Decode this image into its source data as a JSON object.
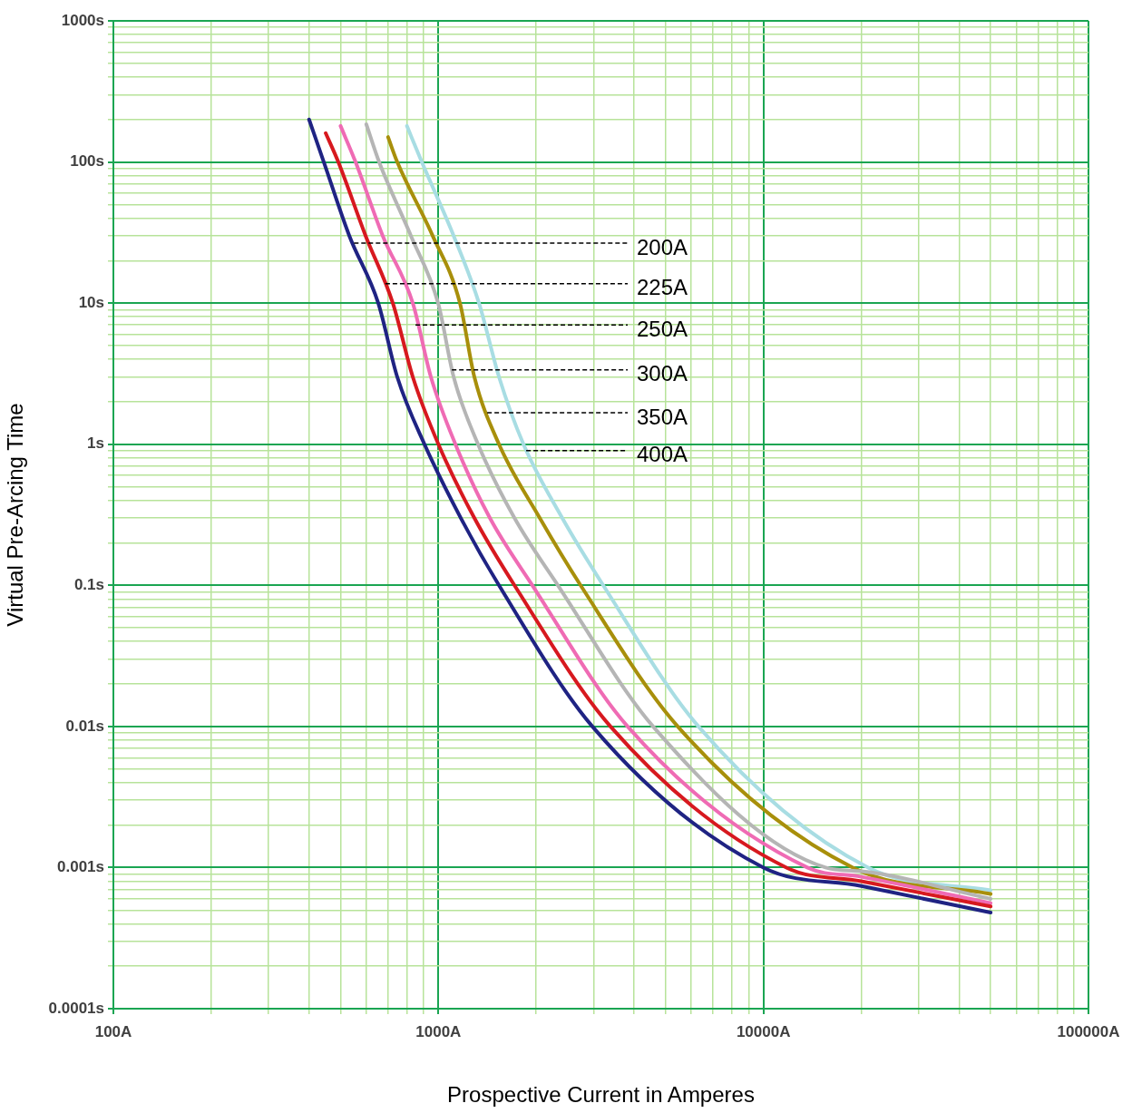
{
  "chart_data": {
    "type": "line",
    "xlabel": "Prospective Current in Amperes",
    "ylabel": "Virtual Pre-Arcing Time",
    "log": "xy",
    "grid": true,
    "legend": false,
    "xlim": [
      100,
      100000
    ],
    "ylim": [
      0.0001,
      1000
    ],
    "xticks": [
      {
        "value": 100,
        "label": "100A"
      },
      {
        "value": 200,
        "label": null
      },
      {
        "value": 300,
        "label": null
      },
      {
        "value": 400,
        "label": null
      },
      {
        "value": 500,
        "label": null
      },
      {
        "value": 600,
        "label": null
      },
      {
        "value": 700,
        "label": null
      },
      {
        "value": 800,
        "label": null
      },
      {
        "value": 900,
        "label": null
      },
      {
        "value": 1000,
        "label": "1000A"
      },
      {
        "value": 2000,
        "label": null
      },
      {
        "value": 3000,
        "label": null
      },
      {
        "value": 4000,
        "label": null
      },
      {
        "value": 5000,
        "label": null
      },
      {
        "value": 6000,
        "label": null
      },
      {
        "value": 7000,
        "label": null
      },
      {
        "value": 8000,
        "label": null
      },
      {
        "value": 9000,
        "label": null
      },
      {
        "value": 10000,
        "label": "10000A"
      },
      {
        "value": 20000,
        "label": null
      },
      {
        "value": 30000,
        "label": null
      },
      {
        "value": 40000,
        "label": null
      },
      {
        "value": 50000,
        "label": null
      },
      {
        "value": 60000,
        "label": null
      },
      {
        "value": 70000,
        "label": null
      },
      {
        "value": 80000,
        "label": null
      },
      {
        "value": 90000,
        "label": null
      },
      {
        "value": 100000,
        "label": "100000A"
      }
    ],
    "yticks": [
      {
        "value": 0.0001,
        "label": "0.0001s"
      },
      {
        "value": 0.0002,
        "label": null
      },
      {
        "value": 0.0003,
        "label": null
      },
      {
        "value": 0.0004,
        "label": null
      },
      {
        "value": 0.0005,
        "label": null
      },
      {
        "value": 0.0006,
        "label": null
      },
      {
        "value": 0.0007,
        "label": null
      },
      {
        "value": 0.0008,
        "label": null
      },
      {
        "value": 0.0009,
        "label": null
      },
      {
        "value": 0.001,
        "label": "0.001s"
      },
      {
        "value": 0.002,
        "label": null
      },
      {
        "value": 0.003,
        "label": null
      },
      {
        "value": 0.004,
        "label": null
      },
      {
        "value": 0.005,
        "label": null
      },
      {
        "value": 0.006,
        "label": null
      },
      {
        "value": 0.007,
        "label": null
      },
      {
        "value": 0.008,
        "label": null
      },
      {
        "value": 0.009,
        "label": null
      },
      {
        "value": 0.01,
        "label": "0.01s"
      },
      {
        "value": 0.02,
        "label": null
      },
      {
        "value": 0.03,
        "label": null
      },
      {
        "value": 0.04,
        "label": null
      },
      {
        "value": 0.05,
        "label": null
      },
      {
        "value": 0.06,
        "label": null
      },
      {
        "value": 0.07,
        "label": null
      },
      {
        "value": 0.08,
        "label": null
      },
      {
        "value": 0.09,
        "label": null
      },
      {
        "value": 0.1,
        "label": "0.1s"
      },
      {
        "value": 0.2,
        "label": null
      },
      {
        "value": 0.3,
        "label": null
      },
      {
        "value": 0.4,
        "label": null
      },
      {
        "value": 0.5,
        "label": null
      },
      {
        "value": 0.6,
        "label": null
      },
      {
        "value": 0.7,
        "label": null
      },
      {
        "value": 0.8,
        "label": null
      },
      {
        "value": 0.9,
        "label": null
      },
      {
        "value": 1,
        "label": "1s"
      },
      {
        "value": 2,
        "label": null
      },
      {
        "value": 3,
        "label": null
      },
      {
        "value": 4,
        "label": null
      },
      {
        "value": 5,
        "label": null
      },
      {
        "value": 6,
        "label": null
      },
      {
        "value": 7,
        "label": null
      },
      {
        "value": 8,
        "label": null
      },
      {
        "value": 9,
        "label": null
      },
      {
        "value": 10,
        "label": "10s"
      },
      {
        "value": 20,
        "label": null
      },
      {
        "value": 30,
        "label": null
      },
      {
        "value": 40,
        "label": null
      },
      {
        "value": 50,
        "label": null
      },
      {
        "value": 60,
        "label": null
      },
      {
        "value": 70,
        "label": null
      },
      {
        "value": 80,
        "label": null
      },
      {
        "value": 90,
        "label": null
      },
      {
        "value": 100,
        "label": "100s"
      },
      {
        "value": 200,
        "label": null
      },
      {
        "value": 300,
        "label": null
      },
      {
        "value": 400,
        "label": null
      },
      {
        "value": 500,
        "label": null
      },
      {
        "value": 600,
        "label": null
      },
      {
        "value": 700,
        "label": null
      },
      {
        "value": 800,
        "label": null
      },
      {
        "value": 900,
        "label": null
      },
      {
        "value": 1000,
        "label": "1000s"
      }
    ],
    "annotations": [
      {
        "text": "200A",
        "x": 550,
        "y": 26.6
      },
      {
        "text": "225A",
        "x": 687,
        "y": 13.7
      },
      {
        "text": "250A",
        "x": 850,
        "y": 7
      },
      {
        "text": "300A",
        "x": 1100,
        "y": 3.36
      },
      {
        "text": "350A",
        "x": 1413,
        "y": 1.67
      },
      {
        "text": "400A",
        "x": 1862,
        "y": 0.9
      }
    ],
    "series": [
      {
        "color": "#1f2383",
        "x": [
          400,
          444,
          532,
          653,
          747,
          906,
          1172,
          1536,
          2976,
          10000,
          20000,
          50000
        ],
        "values": [
          200,
          100,
          30,
          10,
          3,
          1,
          0.3,
          0.1,
          0.01,
          0.001,
          0.00074,
          0.00048
        ]
      },
      {
        "color": "#d7191f",
        "x": [
          450,
          492,
          597,
          724,
          834,
          1000,
          1290,
          1714,
          3383,
          11770,
          20000,
          50000
        ],
        "values": [
          160,
          100,
          30,
          10,
          3,
          1,
          0.3,
          0.1,
          0.01,
          0.001,
          0.0008,
          0.00053
        ]
      },
      {
        "color": "#ef6bb4",
        "x": [
          500,
          556,
          674,
          834,
          948,
          1128,
          1440,
          1946,
          3820,
          13650,
          20000,
          50000
        ],
        "values": [
          180,
          100,
          30,
          10,
          3,
          1,
          0.3,
          0.1,
          0.01,
          0.001,
          0.00086,
          0.00056
        ]
      },
      {
        "color": "#b5b5b5",
        "x": [
          600,
          657,
          823,
          998,
          1114,
          1324,
          1714,
          2332,
          4575,
          15530,
          20000,
          50000
        ],
        "values": [
          185,
          100,
          30,
          10,
          3,
          1,
          0.3,
          0.1,
          0.01,
          0.001,
          0.00094,
          0.0006
        ]
      },
      {
        "color": "#a88f0b",
        "x": [
          700,
          747,
          960,
          1165,
          1290,
          1536,
          2050,
          2738,
          5448,
          18840,
          50000
        ],
        "values": [
          150,
          100,
          30,
          10,
          3,
          1,
          0.3,
          0.1,
          0.01,
          0.001,
          0.00065
        ]
      },
      {
        "color": "#a8dde3",
        "x": [
          800,
          889,
          1114,
          1333,
          1536,
          1827,
          2404,
          3214,
          6310,
          21000,
          50000
        ],
        "values": [
          180,
          100,
          30,
          10,
          3,
          1,
          0.3,
          0.1,
          0.01,
          0.001,
          0.00069
        ]
      }
    ]
  }
}
